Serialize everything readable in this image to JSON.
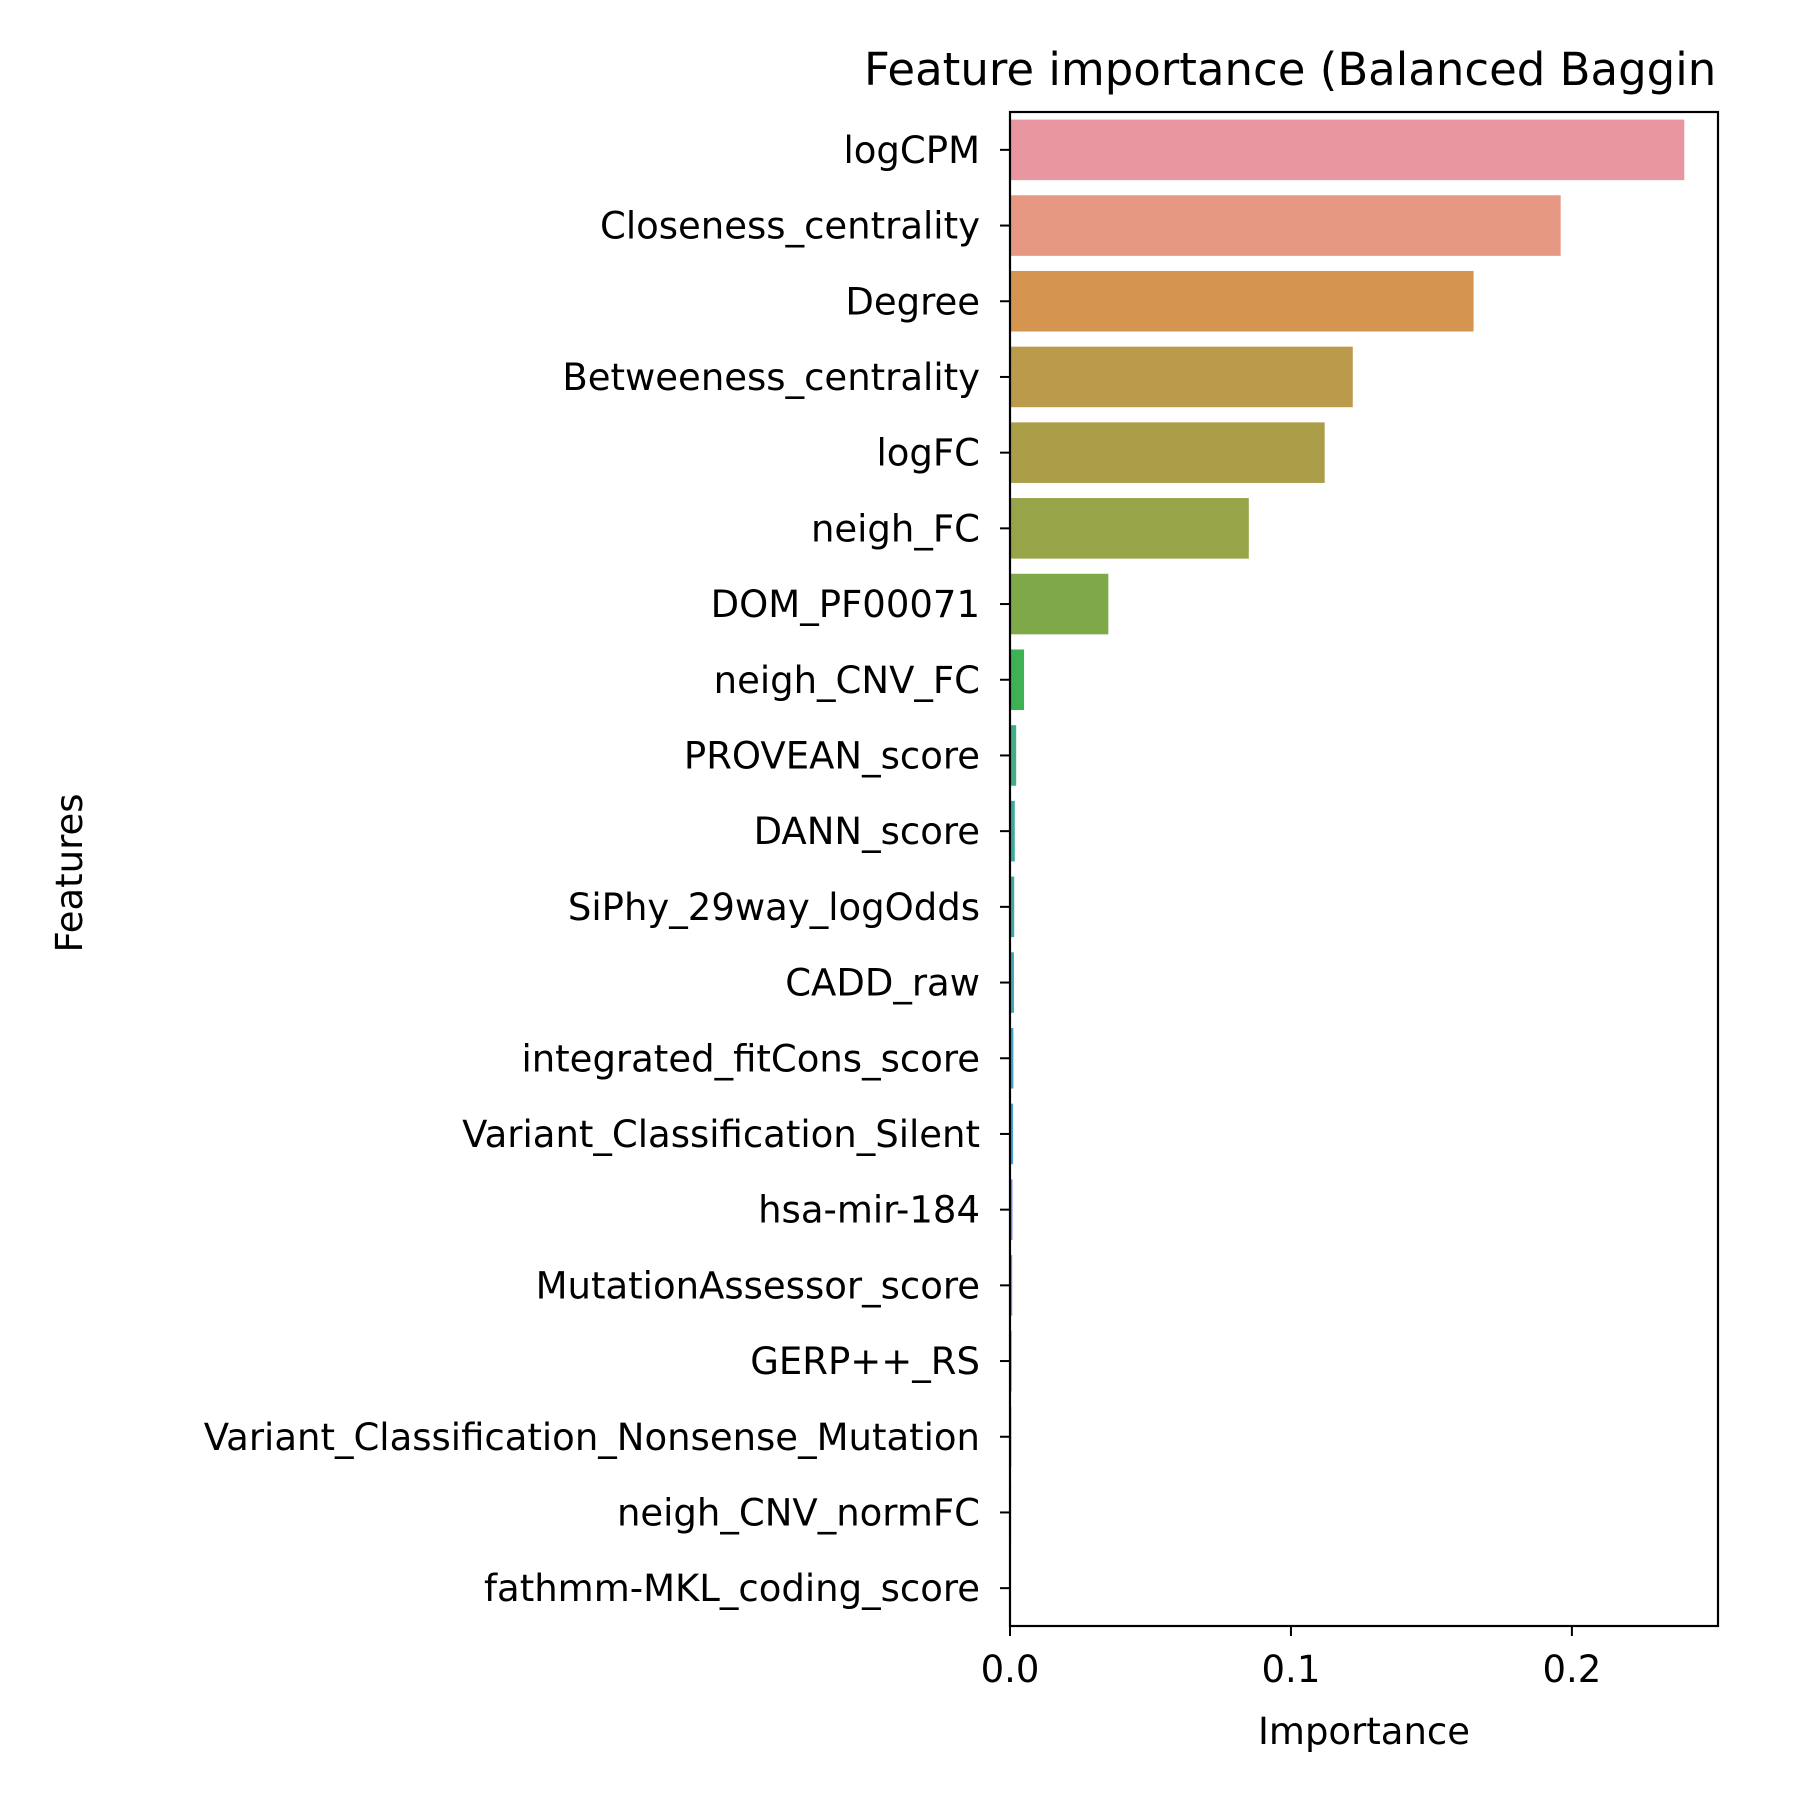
{
  "chart_data": {
    "type": "bar",
    "orientation": "horizontal",
    "title": "Feature importance (Balanced Baggin",
    "xlabel": "Importance",
    "ylabel": "Features",
    "xlim": [
      0,
      0.252
    ],
    "xticks": [
      0.0,
      0.1,
      0.2
    ],
    "xtick_labels": [
      "0.0",
      "0.1",
      "0.2"
    ],
    "grid": false,
    "legend": "none",
    "categories": [
      "logCPM",
      "Closeness_centrality",
      "Degree",
      "Betweeness_centrality",
      "logFC",
      "neigh_FC",
      "DOM_PF00071",
      "neigh_CNV_FC",
      "PROVEAN_score",
      "DANN_score",
      "SiPhy_29way_logOdds",
      "CADD_raw",
      "integrated_fitCons_score",
      "Variant_Classification_Silent",
      "hsa-mir-184",
      "MutationAssessor_score",
      "GERP++_RS",
      "Variant_Classification_Nonsense_Mutation",
      "neigh_CNV_normFC",
      "fathmm-MKL_coding_score"
    ],
    "values": [
      0.24,
      0.196,
      0.165,
      0.122,
      0.112,
      0.085,
      0.035,
      0.005,
      0.0022,
      0.0017,
      0.0015,
      0.0014,
      0.0012,
      0.0011,
      0.0009,
      0.0008,
      0.0006,
      0.0005,
      0.0004,
      0.0002
    ],
    "colors": [
      "#e8969f",
      "#e69882",
      "#d59550",
      "#bc9a4c",
      "#aa9f48",
      "#98a448",
      "#7da948",
      "#3db154",
      "#40ad85",
      "#3eab99",
      "#3fa9a6",
      "#40a7b3",
      "#43a3c3",
      "#4a9cd8",
      "#7f8fe6",
      "#a486e4",
      "#c47de6",
      "#de72d8",
      "#e670b8",
      "#e98bb3"
    ]
  }
}
